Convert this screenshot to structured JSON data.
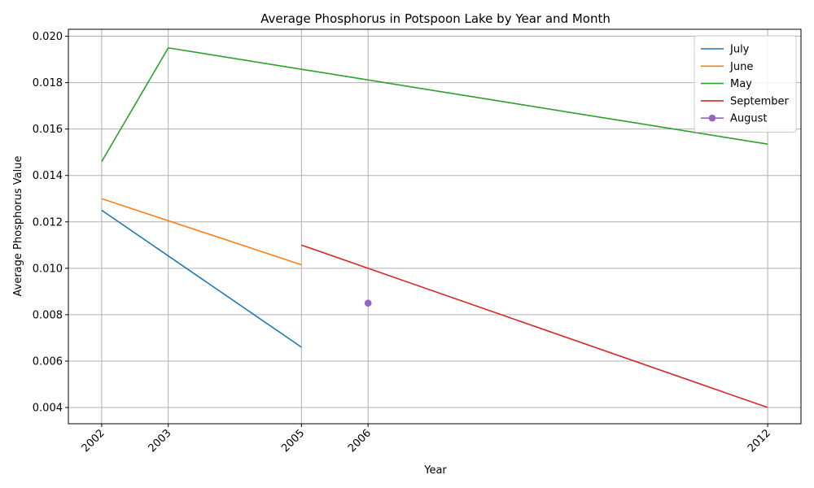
{
  "chart_data": {
    "type": "line",
    "title": "Average Phosphorus in Potspoon Lake by Year and Month",
    "xlabel": "Year",
    "ylabel": "Average Phosphorus Value",
    "xlim": [
      2001.5,
      2012.5
    ],
    "ylim": [
      0.0033,
      0.0203
    ],
    "x_ticks": [
      2002,
      2003,
      2005,
      2006,
      2012
    ],
    "y_ticks": [
      0.004,
      0.006,
      0.008,
      0.01,
      0.012,
      0.014,
      0.016,
      0.018,
      0.02
    ],
    "y_tick_labels": [
      "0.004",
      "0.006",
      "0.008",
      "0.010",
      "0.012",
      "0.014",
      "0.016",
      "0.018",
      "0.020"
    ],
    "grid": true,
    "legend_position": "top-right",
    "series": [
      {
        "name": "July",
        "color": "#1f77b4",
        "marker": "none",
        "x": [
          2002,
          2005
        ],
        "y": [
          0.0125,
          0.0066
        ]
      },
      {
        "name": "June",
        "color": "#ff7f0e",
        "marker": "none",
        "x": [
          2002,
          2005
        ],
        "y": [
          0.013,
          0.01015
        ]
      },
      {
        "name": "May",
        "color": "#2ca02c",
        "marker": "none",
        "x": [
          2002,
          2003,
          2012
        ],
        "y": [
          0.0146,
          0.0195,
          0.01535
        ]
      },
      {
        "name": "September",
        "color": "#d62728",
        "marker": "none",
        "x": [
          2005,
          2012
        ],
        "y": [
          0.011,
          0.004
        ]
      },
      {
        "name": "August",
        "color": "#9467bd",
        "marker": "circle",
        "x": [
          2006
        ],
        "y": [
          0.0085
        ]
      }
    ]
  }
}
